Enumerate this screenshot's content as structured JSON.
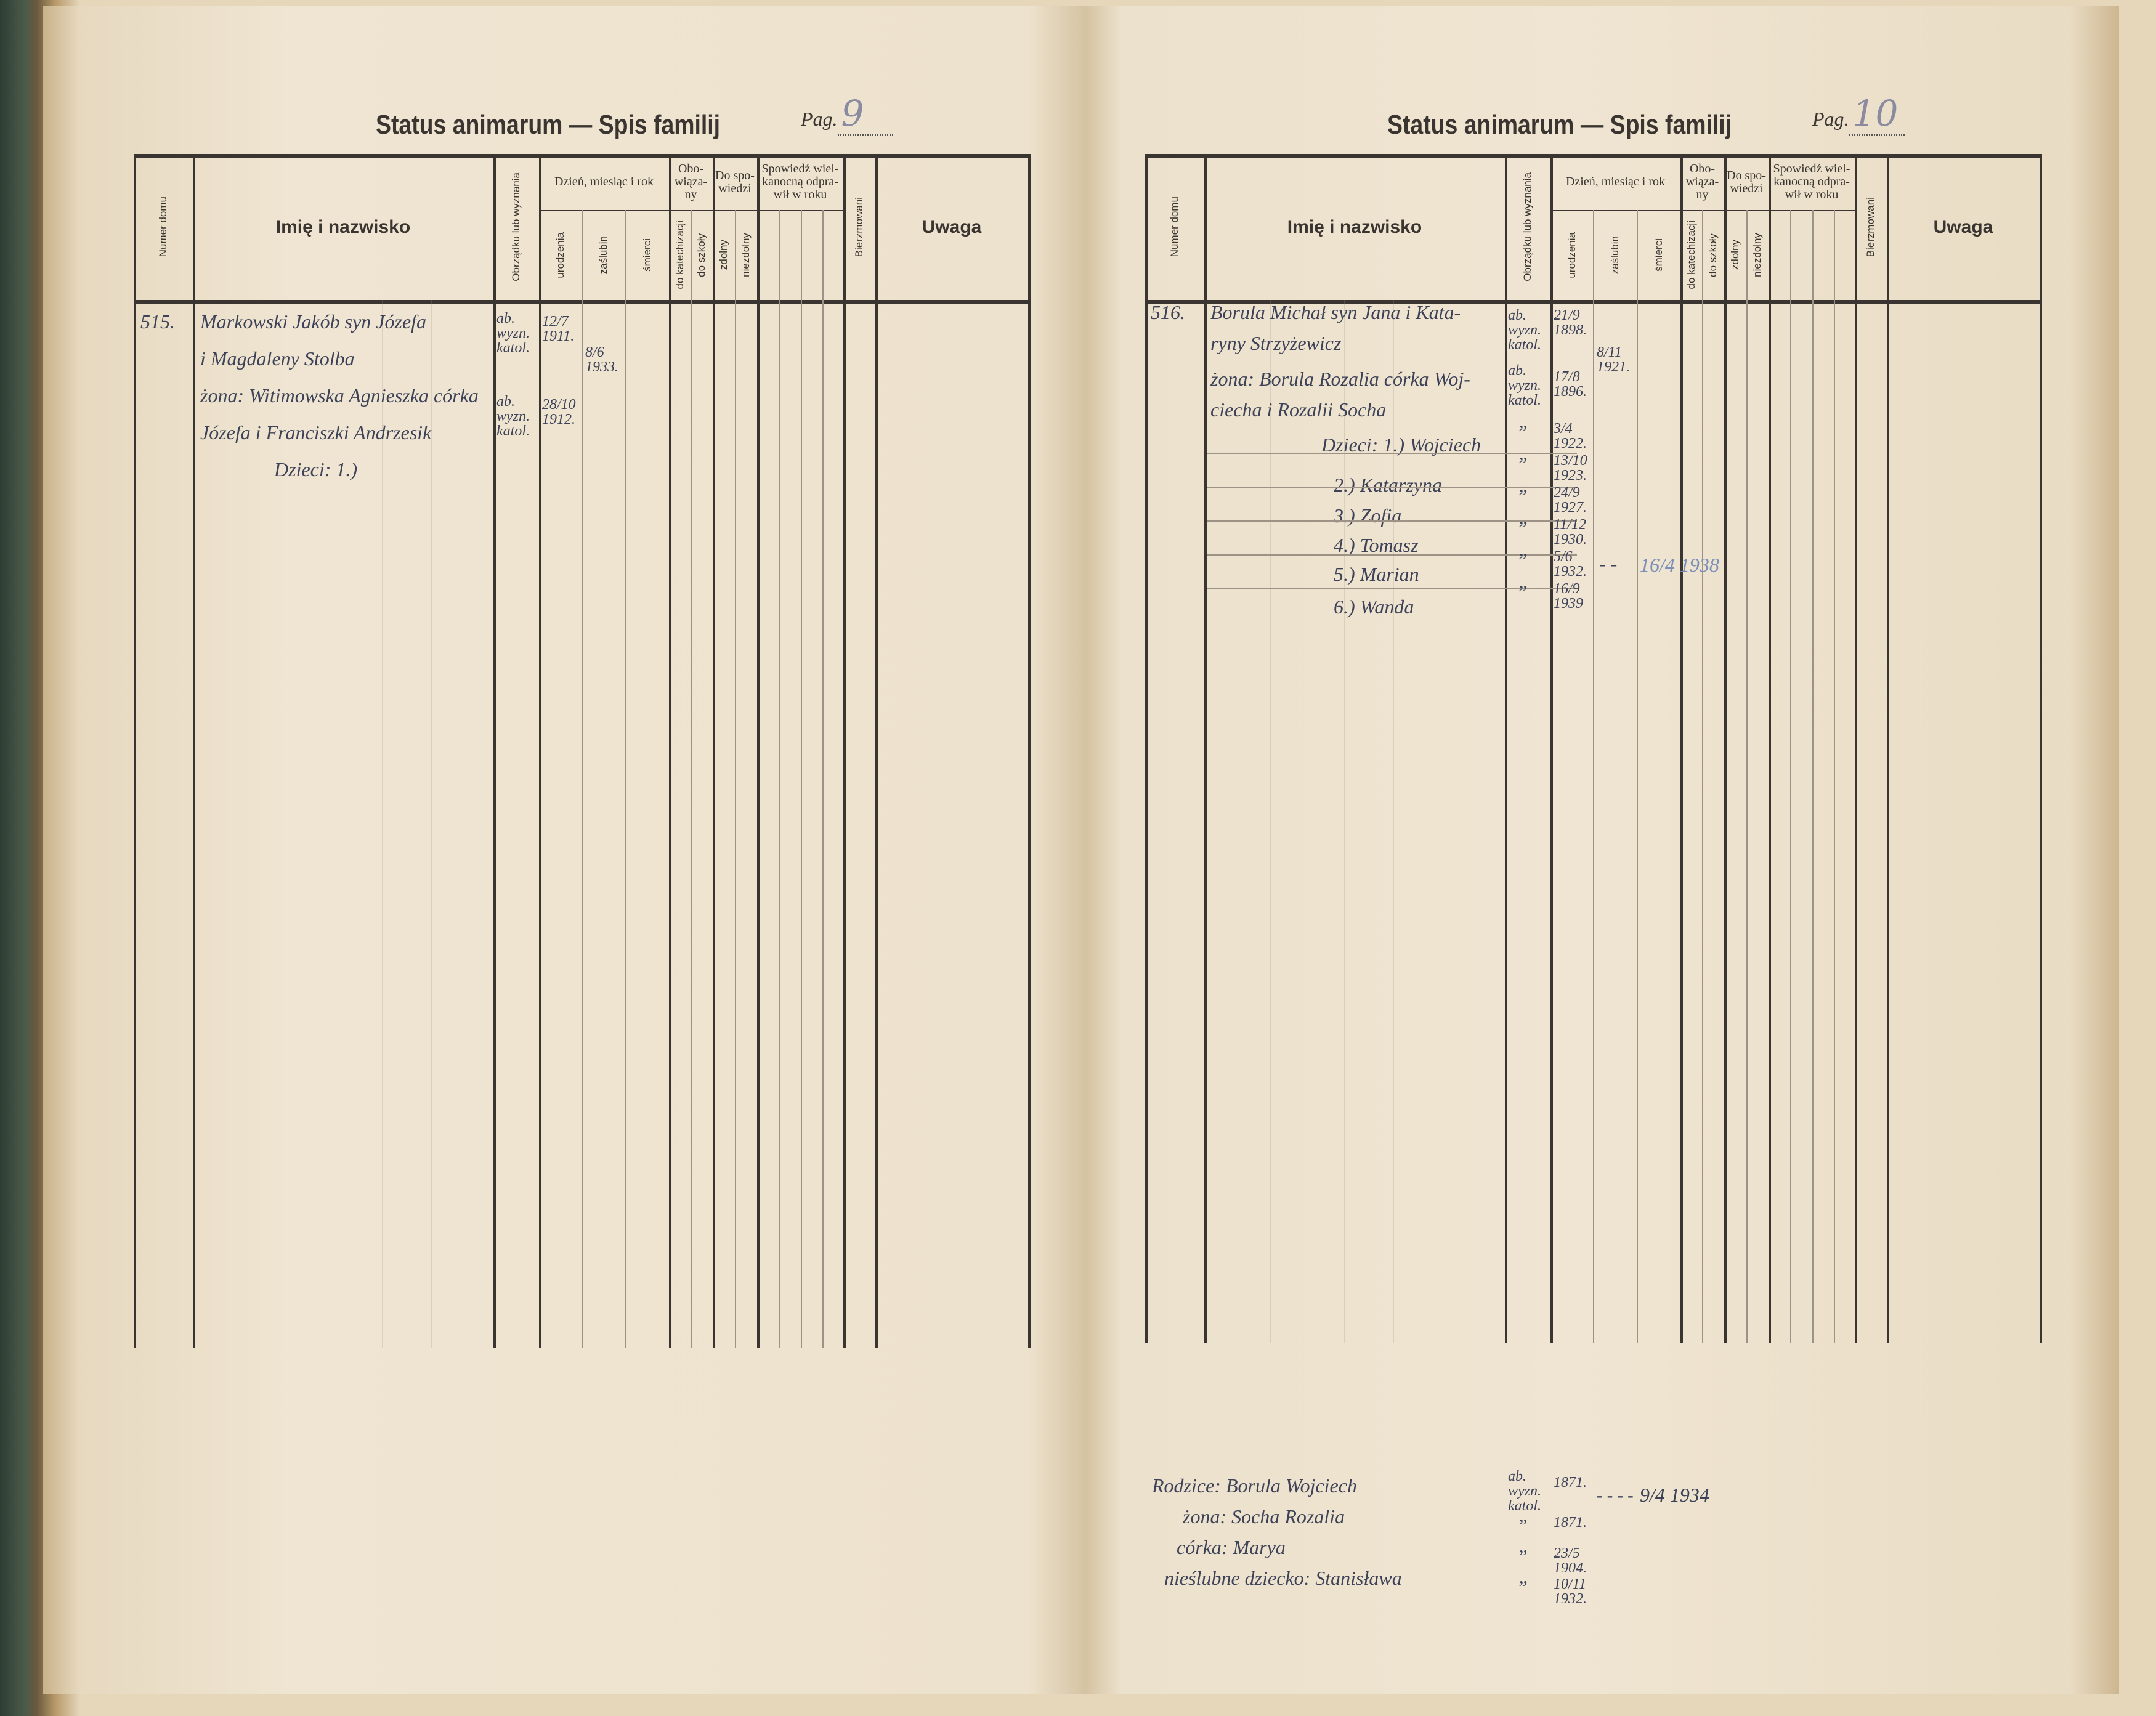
{
  "document": {
    "title": "Status animarum — Spis familij",
    "pag_label": "Pag.",
    "pages": [
      {
        "page_number": "9"
      },
      {
        "page_number": "10"
      }
    ],
    "columns": {
      "numer_domu": "Numer domu",
      "imie": "Imię i nazwisko",
      "obrzadku": "Obrządku lub wyznania",
      "dzien_group": "Dzień, miesiąc i rok",
      "urodzenia": "urodzenia",
      "zaslubin": "zaślubin",
      "smierci": "śmierci",
      "obowiazany_group": "Obo- wiąza- ny",
      "do_katechizacji": "do katechizacji",
      "do_szkoly": "do szkoły",
      "spowiedzi_group": "Do spo- wiedzi",
      "zdolny": "zdolny",
      "niezdolny": "niezdolny",
      "spowiedz_group": "Spowiedź wiel- kanocną odpra- wił w roku",
      "bierzmowani": "Bierzmowani",
      "uwaga": "Uwaga"
    },
    "left_entries": {
      "house": "515.",
      "lines": [
        "Markowski Jakób syn Józefa",
        "i Magdaleny Stolba",
        "żona: Witimowska Agnieszka córka",
        "Józefa i Franciszki Andrzesik",
        "Dzieci: 1.)"
      ],
      "rite1": "ab. wyzn. katol.",
      "birth1": "12/7 1911.",
      "marriage": "8/6 1933.",
      "rite2": "ab. wyzn. katol.",
      "birth2": "28/10 1912."
    },
    "right_entries": {
      "house": "516.",
      "lines": [
        "Borula Michał syn Jana i Kata-",
        "ryny Strzyżewicz",
        "żona: Borula Rozalia córka Woj-",
        "ciecha i Rozalii Socha",
        "Dzieci: 1.) Wojciech",
        "2.) Katarzyna",
        "3.) Zofia",
        "4.) Tomasz",
        "5.) Marian",
        "6.) Wanda"
      ],
      "rite_head": "ab. wyzn. katol.",
      "birth_head": "21/9 1898.",
      "marriage": "8/11 1921.",
      "rite_wife": "ab. wyzn. katol.",
      "birth_wife": "17/8 1896.",
      "ditto": "”",
      "child_births": [
        "3/4 1922.",
        "13/10 1923.",
        "24/9 1927.",
        "11/12 1930.",
        "5/6 1932.",
        "16/9 1939"
      ],
      "child5_dash": "- -",
      "child5_death": "16/4 1938",
      "parents": [
        "Rodzice: Borula Wojciech",
        "żona: Socha Rozalia",
        "córka: Marya",
        "nieślubne dziecko: Stanisława"
      ],
      "parents_rite": "ab. wyzn. katol.",
      "parents_births": [
        "1871.",
        "1871.",
        "23/5 1904.",
        "10/11 1932."
      ],
      "father_death_dots": "- - - -",
      "father_death": "9/4 1934"
    }
  }
}
